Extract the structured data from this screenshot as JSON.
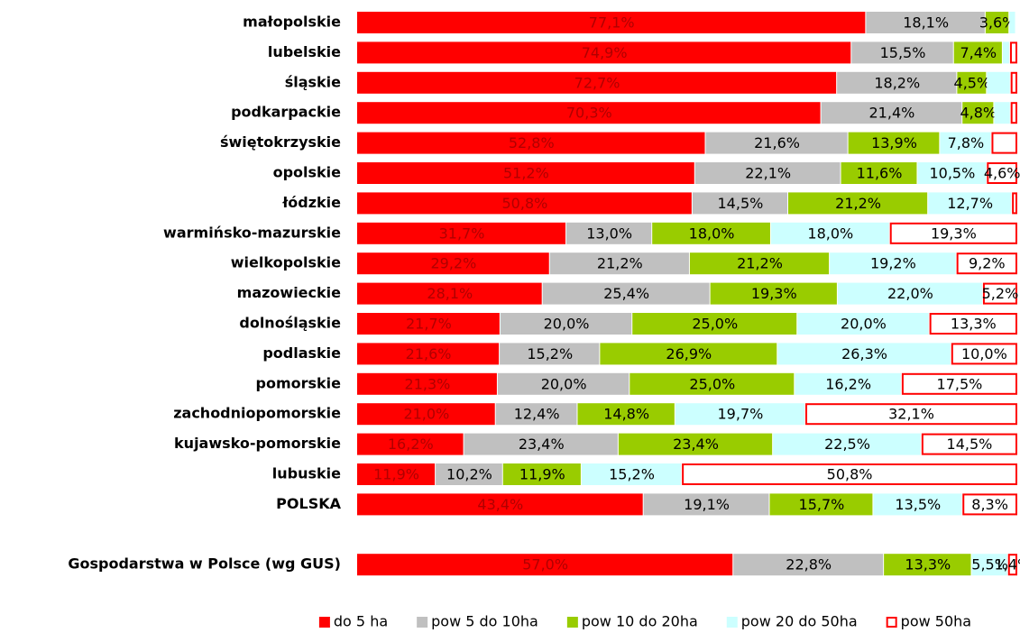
{
  "chart_data": {
    "type": "bar",
    "orientation": "horizontal",
    "stacked": true,
    "categories": [
      "małopolskie",
      "lubelskie",
      "śląskie",
      "podkarpackie",
      "świętokrzyskie",
      "opolskie",
      "łódzkie",
      "warmińsko-mazurskie",
      "wielkopolskie",
      "mazowieckie",
      "dolnośląskie",
      "podlaskie",
      "pomorskie",
      "zachodniopomorskie",
      "kujawsko-pomorskie",
      "lubuskie",
      "POLSKA",
      null,
      "Gospodarstwa w Polsce (wg GUS)"
    ],
    "xlim": [
      0,
      100
    ],
    "series": [
      {
        "name": "do 5 ha",
        "color": "#ff0000",
        "style": "filled",
        "values": [
          77.1,
          74.9,
          72.7,
          70.3,
          52.8,
          51.2,
          50.8,
          31.7,
          29.2,
          28.1,
          21.7,
          21.6,
          21.3,
          21.0,
          16.2,
          11.9,
          43.4,
          null,
          57.0
        ],
        "value_labels": [
          "77,1%",
          "74,9%",
          "72,7%",
          "70,3%",
          "52,8%",
          "51,2%",
          "50,8%",
          "31,7%",
          "29,2%",
          "28,1%",
          "21,7%",
          "21,6%",
          "21,3%",
          "21,0%",
          "16,2%",
          "11,9%",
          "43,4%",
          null,
          "57,0%"
        ]
      },
      {
        "name": "pow 5 do 10ha",
        "color": "#c0c0c0",
        "style": "filled",
        "values": [
          18.1,
          15.5,
          18.2,
          21.4,
          21.6,
          22.1,
          14.5,
          13.0,
          21.2,
          25.4,
          20.0,
          15.2,
          20.0,
          12.4,
          23.4,
          10.2,
          19.1,
          null,
          22.8
        ],
        "value_labels": [
          "18,1%",
          "15,5%",
          "18,2%",
          "21,4%",
          "21,6%",
          "22,1%",
          "14,5%",
          "13,0%",
          "21,2%",
          "25,4%",
          "20,0%",
          "15,2%",
          "20,0%",
          "12,4%",
          "23,4%",
          "10,2%",
          "19,1%",
          null,
          "22,8%"
        ]
      },
      {
        "name": "pow 10 do 20ha",
        "color": "#99cc00",
        "style": "filled",
        "values": [
          3.6,
          7.4,
          4.5,
          4.8,
          13.9,
          11.6,
          21.2,
          18.0,
          21.2,
          19.3,
          25.0,
          26.9,
          25.0,
          14.8,
          23.4,
          11.9,
          15.7,
          null,
          13.3
        ],
        "value_labels": [
          "3,6%",
          "7,4%",
          "4,5%",
          "4,8%",
          "13,9%",
          "11,6%",
          "21,2%",
          "18,0%",
          "21,2%",
          "19,3%",
          "25,0%",
          "26,9%",
          "25,0%",
          "14,8%",
          "23,4%",
          "11,9%",
          "15,7%",
          null,
          "13,3%"
        ]
      },
      {
        "name": "pow 20 do 50ha",
        "color": "#ccffff",
        "style": "filled",
        "values": [
          1.0,
          1.1,
          3.6,
          2.5,
          7.8,
          10.5,
          12.7,
          18.0,
          19.2,
          22.0,
          20.0,
          26.3,
          16.2,
          19.7,
          22.5,
          15.2,
          13.5,
          null,
          5.5
        ],
        "value_labels": [
          null,
          null,
          null,
          null,
          "7,8%",
          "10,5%",
          "12,7%",
          "18,0%",
          "19,2%",
          "22,0%",
          "20,0%",
          "26,3%",
          "16,2%",
          "19,7%",
          "22,5%",
          "15,2%",
          "13,5%",
          null,
          "5,5%"
        ]
      },
      {
        "name": "pow 50ha",
        "color": "#ff0000",
        "style": "outline",
        "values": [
          0.2,
          1.1,
          1.0,
          1.0,
          3.9,
          4.6,
          0.8,
          19.3,
          9.2,
          5.2,
          13.3,
          10.0,
          17.5,
          32.1,
          14.5,
          50.8,
          8.3,
          null,
          1.4
        ],
        "value_labels": [
          null,
          null,
          null,
          null,
          null,
          "4,6%",
          null,
          "19,3%",
          "9,2%",
          "5,2%",
          "13,3%",
          "10,0%",
          "17,5%",
          "32,1%",
          "14,5%",
          "50,8%",
          "8,3%",
          null,
          "1,4%"
        ]
      }
    ],
    "legend": "bottom"
  }
}
